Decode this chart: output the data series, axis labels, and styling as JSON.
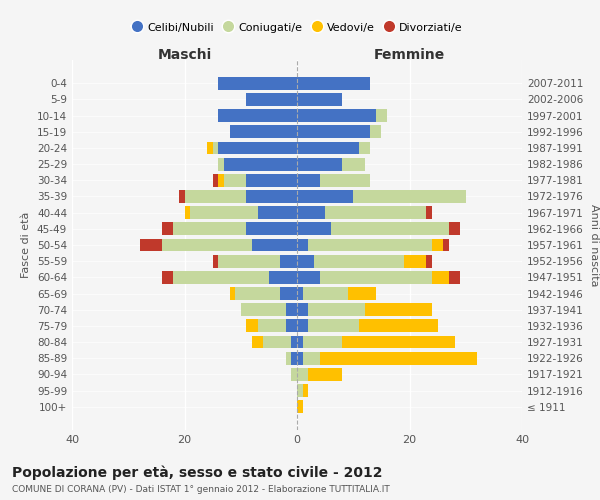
{
  "age_groups": [
    "100+",
    "95-99",
    "90-94",
    "85-89",
    "80-84",
    "75-79",
    "70-74",
    "65-69",
    "60-64",
    "55-59",
    "50-54",
    "45-49",
    "40-44",
    "35-39",
    "30-34",
    "25-29",
    "20-24",
    "15-19",
    "10-14",
    "5-9",
    "0-4"
  ],
  "birth_years": [
    "≤ 1911",
    "1912-1916",
    "1917-1921",
    "1922-1926",
    "1927-1931",
    "1932-1936",
    "1937-1941",
    "1942-1946",
    "1947-1951",
    "1952-1956",
    "1957-1961",
    "1962-1966",
    "1967-1971",
    "1972-1976",
    "1977-1981",
    "1982-1986",
    "1987-1991",
    "1992-1996",
    "1997-2001",
    "2002-2006",
    "2007-2011"
  ],
  "maschi": {
    "celibi": [
      0,
      0,
      0,
      1,
      1,
      2,
      2,
      3,
      5,
      3,
      8,
      9,
      7,
      9,
      9,
      13,
      14,
      12,
      14,
      9,
      14
    ],
    "coniugati": [
      0,
      0,
      1,
      1,
      5,
      5,
      8,
      8,
      17,
      11,
      16,
      13,
      12,
      11,
      4,
      1,
      1,
      0,
      0,
      0,
      0
    ],
    "vedovi": [
      0,
      0,
      0,
      0,
      2,
      2,
      0,
      1,
      0,
      0,
      0,
      0,
      1,
      0,
      1,
      0,
      1,
      0,
      0,
      0,
      0
    ],
    "divorziati": [
      0,
      0,
      0,
      0,
      0,
      0,
      0,
      0,
      2,
      1,
      4,
      2,
      0,
      1,
      1,
      0,
      0,
      0,
      0,
      0,
      0
    ]
  },
  "femmine": {
    "nubili": [
      0,
      0,
      0,
      1,
      1,
      2,
      2,
      1,
      4,
      3,
      2,
      6,
      5,
      10,
      4,
      8,
      11,
      13,
      14,
      8,
      13
    ],
    "coniugate": [
      0,
      1,
      2,
      3,
      7,
      9,
      10,
      8,
      20,
      16,
      22,
      21,
      18,
      20,
      9,
      4,
      2,
      2,
      2,
      0,
      0
    ],
    "vedove": [
      1,
      1,
      6,
      28,
      20,
      14,
      12,
      5,
      3,
      4,
      2,
      0,
      0,
      0,
      0,
      0,
      0,
      0,
      0,
      0,
      0
    ],
    "divorziate": [
      0,
      0,
      0,
      0,
      0,
      0,
      0,
      0,
      2,
      1,
      1,
      2,
      1,
      0,
      0,
      0,
      0,
      0,
      0,
      0,
      0
    ]
  },
  "colors": {
    "celibe": "#4472c4",
    "coniugato": "#c5d89d",
    "vedovo": "#ffc000",
    "divorziato": "#c0392b"
  },
  "title": "Popolazione per età, sesso e stato civile - 2012",
  "subtitle": "COMUNE DI CORANA (PV) - Dati ISTAT 1° gennaio 2012 - Elaborazione TUTTITALIA.IT",
  "xlabel_left": "Maschi",
  "xlabel_right": "Femmine",
  "ylabel_left": "Fasce di età",
  "ylabel_right": "Anni di nascita",
  "xlim": 40,
  "legend_labels": [
    "Celibi/Nubili",
    "Coniugati/e",
    "Vedovi/e",
    "Divorziati/e"
  ]
}
